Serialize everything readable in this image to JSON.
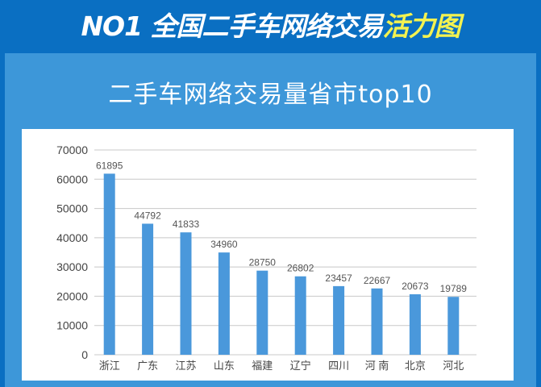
{
  "header": {
    "title_main": "NO1 全国二手车网络交易",
    "title_highlight": "活力图"
  },
  "colors": {
    "background": "#0a6fc2",
    "panel": "#3d97d9",
    "bar": "#4a98db",
    "highlight": "#f3f250"
  },
  "chart_data": {
    "type": "bar",
    "title": "二手车网络交易量省市top10",
    "categories": [
      "浙江",
      "广东",
      "江苏",
      "山东",
      "福建",
      "辽宁",
      "四川",
      "河 南",
      "北京",
      "河北"
    ],
    "values": [
      61895,
      44792,
      41833,
      34960,
      28750,
      26802,
      23457,
      22667,
      20673,
      19789
    ],
    "yticks": [
      0,
      10000,
      20000,
      30000,
      40000,
      50000,
      60000,
      70000
    ],
    "ylim": [
      0,
      70000
    ],
    "grid": true,
    "data_labels": true
  }
}
